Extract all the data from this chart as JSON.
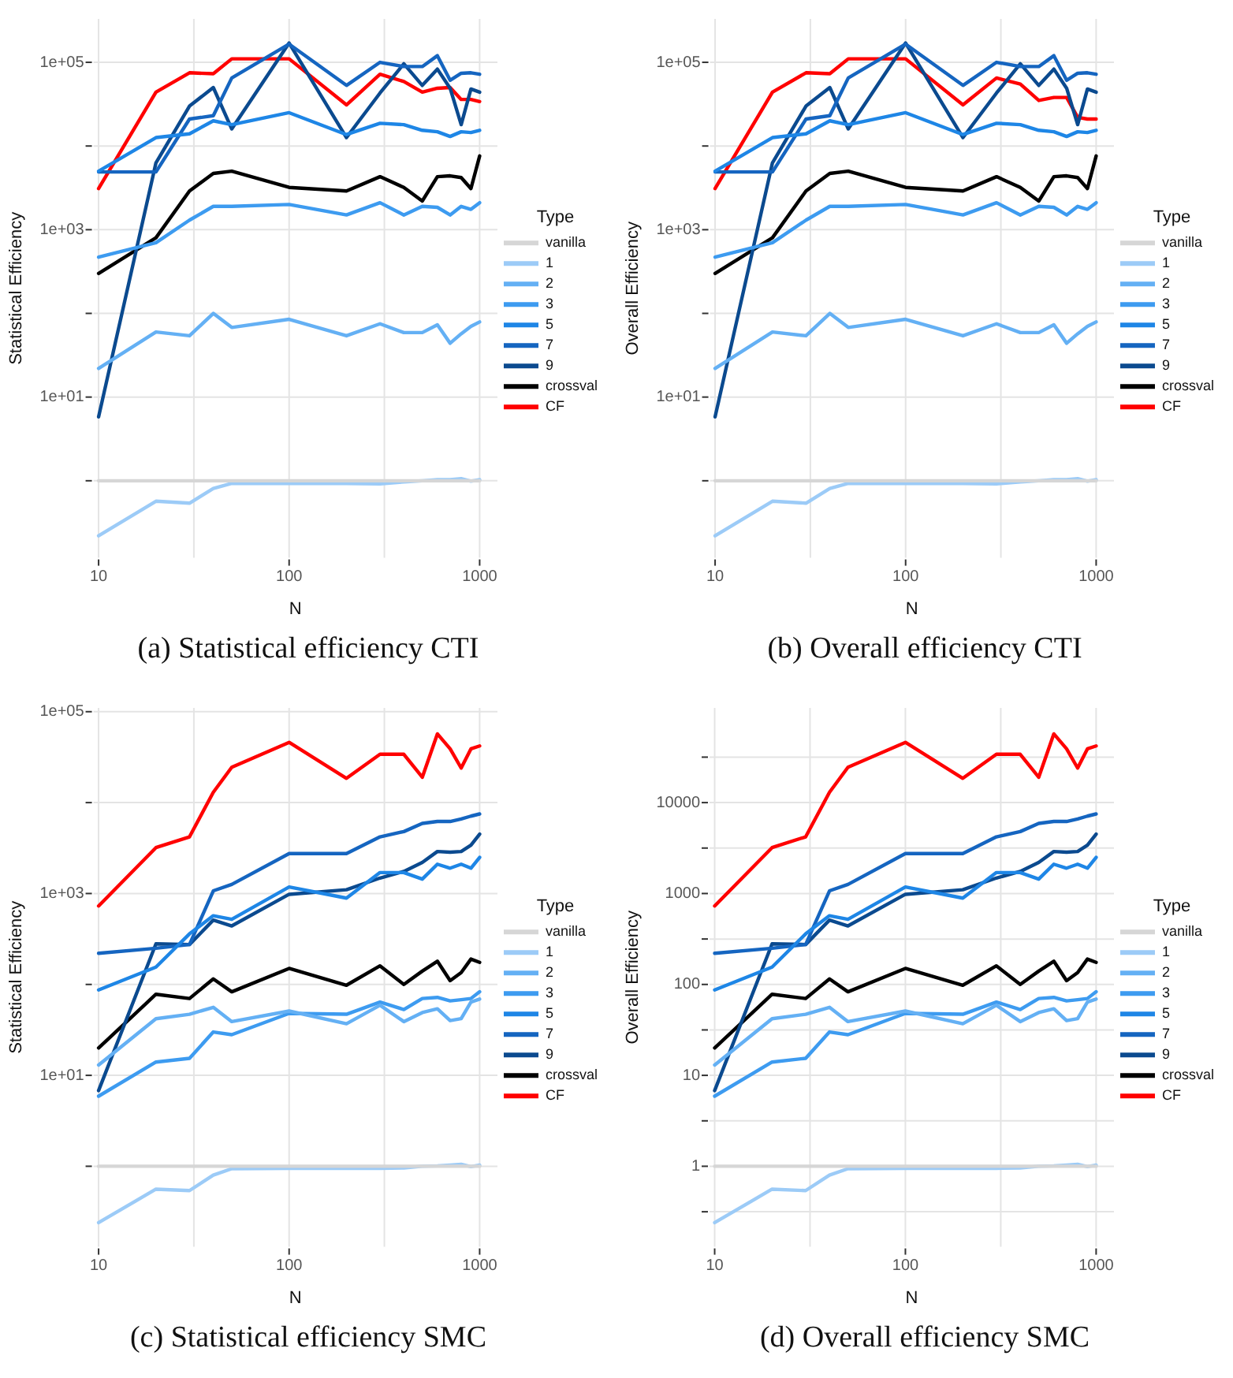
{
  "chart_data": [
    {
      "type": "line",
      "annotations": [
        "(a) Statistical efficiency CTI"
      ],
      "xlabel": "N",
      "ylabel": "Statistical Efficiency",
      "legend_title": "Type",
      "legend": "right",
      "grid": true,
      "log": "xy",
      "marker": "none",
      "line_style": "solid",
      "x": [
        10,
        20,
        30,
        40,
        50,
        100,
        200,
        300,
        400,
        500,
        600,
        700,
        800,
        900,
        1000
      ],
      "xlim": [
        9.4,
        1240
      ],
      "xticks": [
        10,
        100,
        1000
      ],
      "ylim": [
        0.12,
        330000
      ],
      "yticks": [
        {
          "value": 1,
          "label": null
        },
        {
          "value": 10,
          "label": "1e+01"
        },
        {
          "value": 100,
          "label": null
        },
        {
          "value": 1000,
          "label": "1e+03"
        },
        {
          "value": 10000,
          "label": null
        },
        {
          "value": 100000,
          "label": "1e+05"
        }
      ],
      "series": [
        {
          "name": "vanilla",
          "color": "#d6d6d6",
          "values": [
            1,
            1,
            1,
            1,
            1,
            1,
            1,
            1,
            1,
            1,
            1,
            1,
            1,
            1,
            1
          ]
        },
        {
          "name": "1",
          "color": "#9ccbf7",
          "values": [
            0.22,
            0.57,
            0.54,
            0.81,
            0.93,
            0.93,
            0.93,
            0.92,
            0.97,
            1.0,
            1.03,
            1.03,
            1.06,
            0.99,
            1.03
          ]
        },
        {
          "name": "2",
          "color": "#64b0f4",
          "values": [
            22,
            60,
            54,
            100,
            68,
            85,
            54,
            75,
            59,
            59,
            73,
            44,
            57,
            70,
            79
          ]
        },
        {
          "name": "3",
          "color": "#3d9bf0",
          "values": [
            470,
            700,
            1300,
            1900,
            1900,
            2000,
            1500,
            2100,
            1500,
            1900,
            1850,
            1500,
            1900,
            1750,
            2100
          ]
        },
        {
          "name": "5",
          "color": "#1e86e6",
          "values": [
            5000,
            12600,
            14000,
            20000,
            18000,
            25000,
            13700,
            18700,
            18000,
            15400,
            14800,
            13000,
            14800,
            14500,
            15400
          ]
        },
        {
          "name": "7",
          "color": "#1565c0",
          "values": [
            4900,
            4900,
            21000,
            23000,
            65000,
            165000,
            53000,
            100000,
            89000,
            89000,
            120000,
            61000,
            74000,
            75000,
            72000
          ]
        },
        {
          "name": "9",
          "color": "#0b4a8f",
          "values": [
            5.8,
            6300,
            30000,
            50000,
            16000,
            170000,
            12600,
            43000,
            96000,
            53000,
            83000,
            49000,
            18000,
            48000,
            44000
          ]
        },
        {
          "name": "crossval",
          "color": "#000000",
          "values": [
            300,
            800,
            2900,
            4700,
            5000,
            3200,
            2900,
            4300,
            3200,
            2200,
            4300,
            4400,
            4200,
            3100,
            7600
          ]
        },
        {
          "name": "CF",
          "color": "#ff0000",
          "values": [
            3100,
            44000,
            75000,
            73000,
            110000,
            110000,
            31000,
            72000,
            59000,
            44000,
            49000,
            50000,
            36000,
            36000,
            34000
          ]
        }
      ]
    },
    {
      "type": "line",
      "annotations": [
        "(b) Overall efficiency CTI"
      ],
      "xlabel": "N",
      "ylabel": "Overall Efficiency",
      "legend_title": "Type",
      "legend": "right",
      "grid": true,
      "log": "xy",
      "marker": "none",
      "line_style": "solid",
      "x": [
        10,
        20,
        30,
        40,
        50,
        100,
        200,
        300,
        400,
        500,
        600,
        700,
        800,
        900,
        1000
      ],
      "xlim": [
        9.4,
        1240
      ],
      "xticks": [
        10,
        100,
        1000
      ],
      "ylim": [
        0.12,
        330000
      ],
      "yticks": [
        {
          "value": 1,
          "label": null
        },
        {
          "value": 10,
          "label": "1e+01"
        },
        {
          "value": 100,
          "label": null
        },
        {
          "value": 1000,
          "label": "1e+03"
        },
        {
          "value": 10000,
          "label": null
        },
        {
          "value": 100000,
          "label": "1e+05"
        }
      ],
      "series": [
        {
          "name": "vanilla",
          "color": "#d6d6d6",
          "values": [
            1,
            1,
            1,
            1,
            1,
            1,
            1,
            1,
            1,
            1,
            1,
            1,
            1,
            1,
            1
          ]
        },
        {
          "name": "1",
          "color": "#9ccbf7",
          "values": [
            0.22,
            0.57,
            0.54,
            0.81,
            0.93,
            0.93,
            0.93,
            0.92,
            0.97,
            1.0,
            1.03,
            1.03,
            1.06,
            0.99,
            1.03
          ]
        },
        {
          "name": "2",
          "color": "#64b0f4",
          "values": [
            22,
            60,
            54,
            100,
            68,
            85,
            54,
            75,
            59,
            59,
            73,
            44,
            57,
            70,
            79
          ]
        },
        {
          "name": "3",
          "color": "#3d9bf0",
          "values": [
            470,
            700,
            1300,
            1900,
            1900,
            2000,
            1500,
            2100,
            1500,
            1900,
            1850,
            1500,
            1900,
            1750,
            2100
          ]
        },
        {
          "name": "5",
          "color": "#1e86e6",
          "values": [
            5000,
            12600,
            14000,
            20000,
            18000,
            25000,
            13700,
            18700,
            18000,
            15400,
            14800,
            13000,
            14800,
            14500,
            15400
          ]
        },
        {
          "name": "7",
          "color": "#1565c0",
          "values": [
            4900,
            4900,
            21000,
            23000,
            65000,
            165000,
            53000,
            100000,
            89000,
            89000,
            120000,
            61000,
            74000,
            75000,
            72000
          ]
        },
        {
          "name": "9",
          "color": "#0b4a8f",
          "values": [
            5.8,
            6300,
            30000,
            50000,
            16000,
            170000,
            12600,
            43000,
            96000,
            53000,
            83000,
            49000,
            18000,
            48000,
            44000
          ]
        },
        {
          "name": "crossval",
          "color": "#000000",
          "values": [
            300,
            800,
            2900,
            4700,
            5000,
            3200,
            2900,
            4300,
            3200,
            2200,
            4300,
            4400,
            4200,
            3100,
            7600
          ]
        },
        {
          "name": "CF",
          "color": "#ff0000",
          "values": [
            3100,
            44000,
            75000,
            73000,
            110000,
            110000,
            31000,
            65000,
            55000,
            35000,
            38000,
            38000,
            22000,
            21000,
            21000
          ]
        }
      ]
    },
    {
      "type": "line",
      "annotations": [
        "(c) Statistical efficiency SMC"
      ],
      "xlabel": "N",
      "ylabel": "Statistical Efficiency",
      "legend_title": "Type",
      "legend": "right",
      "grid": true,
      "log": "xy",
      "marker": "none",
      "line_style": "solid",
      "x": [
        10,
        20,
        30,
        40,
        50,
        100,
        200,
        300,
        400,
        500,
        600,
        700,
        800,
        900,
        1000
      ],
      "xlim": [
        9.4,
        1240
      ],
      "xticks": [
        10,
        100,
        1000
      ],
      "ylim": [
        0.13,
        110000
      ],
      "yticks": [
        {
          "value": 1,
          "label": null
        },
        {
          "value": 10,
          "label": "1e+01"
        },
        {
          "value": 100,
          "label": null
        },
        {
          "value": 1000,
          "label": "1e+03"
        },
        {
          "value": 10000,
          "label": null
        },
        {
          "value": 100000,
          "label": "1e+05"
        }
      ],
      "series": [
        {
          "name": "vanilla",
          "color": "#d6d6d6",
          "values": [
            1,
            1,
            1,
            1,
            1,
            1,
            1,
            1,
            1,
            1,
            1,
            1,
            1,
            1,
            1
          ]
        },
        {
          "name": "1",
          "color": "#9ccbf7",
          "values": [
            0.24,
            0.56,
            0.54,
            0.8,
            0.94,
            0.95,
            0.95,
            0.95,
            0.96,
            1.0,
            1.01,
            1.03,
            1.05,
            0.99,
            1.03
          ]
        },
        {
          "name": "2",
          "color": "#64b0f4",
          "values": [
            13,
            42,
            47,
            56,
            39,
            51,
            37,
            59,
            39,
            49,
            54,
            40,
            42,
            64,
            69
          ]
        },
        {
          "name": "3",
          "color": "#3d9bf0",
          "values": [
            5.9,
            14,
            15.4,
            30,
            28,
            48,
            47,
            64,
            53,
            70,
            72,
            66,
            68,
            70,
            83
          ]
        },
        {
          "name": "5",
          "color": "#1e86e6",
          "values": [
            87,
            155,
            360,
            570,
            520,
            1180,
            890,
            1700,
            1700,
            1440,
            2100,
            1900,
            2100,
            1900,
            2500
          ]
        },
        {
          "name": "7",
          "color": "#1565c0",
          "values": [
            220,
            250,
            275,
            1070,
            1260,
            2750,
            2750,
            4200,
            4800,
            5900,
            6200,
            6200,
            6600,
            7100,
            7500
          ]
        },
        {
          "name": "9",
          "color": "#0b4a8f",
          "values": [
            6.8,
            280,
            275,
            510,
            440,
            980,
            1100,
            1480,
            1750,
            2200,
            2900,
            2850,
            2900,
            3400,
            4500
          ]
        },
        {
          "name": "crossval",
          "color": "#000000",
          "values": [
            20,
            78,
            70,
            115,
            83,
            150,
            98,
            160,
            100,
            140,
            180,
            110,
            135,
            190,
            175
          ]
        },
        {
          "name": "CF",
          "color": "#ff0000",
          "values": [
            730,
            3200,
            4200,
            13000,
            24500,
            46000,
            18500,
            34000,
            34000,
            19000,
            57000,
            39000,
            24000,
            39000,
            42000
          ]
        }
      ]
    },
    {
      "type": "line",
      "annotations": [
        "(d) Overall efficiency SMC"
      ],
      "xlabel": "N",
      "ylabel": "Overall Efficiency",
      "legend_title": "Type",
      "legend": "right",
      "grid": true,
      "log": "xy",
      "marker": "none",
      "line_style": "solid",
      "x": [
        10,
        20,
        30,
        40,
        50,
        100,
        200,
        300,
        400,
        500,
        600,
        700,
        800,
        900,
        1000
      ],
      "xlim": [
        9.4,
        1240
      ],
      "xticks": [
        10,
        100,
        1000
      ],
      "ylim": [
        0.13,
        110000
      ],
      "yticks": [
        {
          "value": 0.316,
          "label": null
        },
        1,
        {
          "value": 3.16,
          "label": null
        },
        10,
        {
          "value": 31.6,
          "label": null
        },
        100,
        {
          "value": 316,
          "label": null
        },
        1000,
        {
          "value": 3162,
          "label": null
        },
        10000,
        {
          "value": 31623,
          "label": null
        }
      ],
      "series": [
        {
          "name": "vanilla",
          "color": "#d6d6d6",
          "values": [
            1,
            1,
            1,
            1,
            1,
            1,
            1,
            1,
            1,
            1,
            1,
            1,
            1,
            1,
            1
          ]
        },
        {
          "name": "1",
          "color": "#9ccbf7",
          "values": [
            0.24,
            0.56,
            0.54,
            0.8,
            0.94,
            0.95,
            0.95,
            0.95,
            0.96,
            1.0,
            1.01,
            1.03,
            1.05,
            0.99,
            1.03
          ]
        },
        {
          "name": "2",
          "color": "#64b0f4",
          "values": [
            13,
            42,
            47,
            56,
            39,
            51,
            37,
            59,
            39,
            49,
            54,
            40,
            42,
            64,
            69
          ]
        },
        {
          "name": "3",
          "color": "#3d9bf0",
          "values": [
            5.9,
            14,
            15.4,
            30,
            28,
            48,
            47,
            64,
            53,
            70,
            72,
            66,
            68,
            70,
            83
          ]
        },
        {
          "name": "5",
          "color": "#1e86e6",
          "values": [
            87,
            155,
            360,
            570,
            520,
            1180,
            890,
            1700,
            1700,
            1440,
            2100,
            1900,
            2100,
            1900,
            2500
          ]
        },
        {
          "name": "7",
          "color": "#1565c0",
          "values": [
            220,
            250,
            275,
            1070,
            1260,
            2750,
            2750,
            4200,
            4800,
            5900,
            6200,
            6200,
            6600,
            7100,
            7500
          ]
        },
        {
          "name": "9",
          "color": "#0b4a8f",
          "values": [
            6.8,
            280,
            275,
            510,
            440,
            980,
            1100,
            1480,
            1750,
            2200,
            2900,
            2850,
            2900,
            3400,
            4500
          ]
        },
        {
          "name": "crossval",
          "color": "#000000",
          "values": [
            20,
            78,
            70,
            115,
            83,
            150,
            98,
            160,
            100,
            140,
            180,
            110,
            135,
            190,
            175
          ]
        },
        {
          "name": "CF",
          "color": "#ff0000",
          "values": [
            730,
            3200,
            4200,
            13000,
            24500,
            46000,
            18500,
            34000,
            34000,
            19000,
            57000,
            39000,
            24000,
            39000,
            42000
          ]
        }
      ]
    }
  ]
}
